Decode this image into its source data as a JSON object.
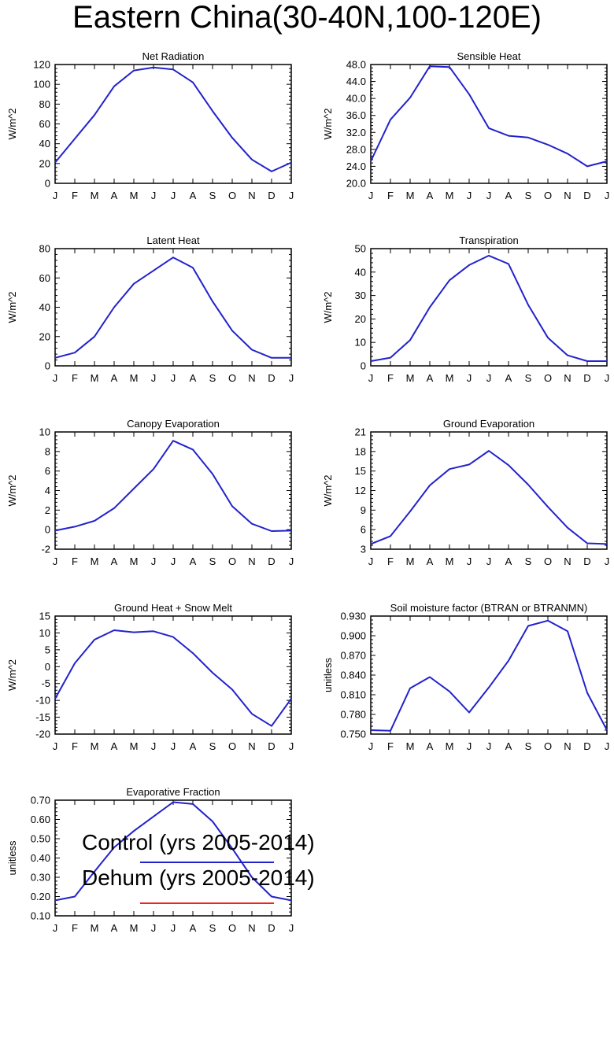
{
  "title": "Eastern China(30-40N,100-120E)",
  "months": [
    "J",
    "F",
    "M",
    "A",
    "M",
    "J",
    "J",
    "A",
    "S",
    "O",
    "N",
    "D",
    "J"
  ],
  "colors": {
    "control": "#2222cc",
    "dehum": "#ee2222",
    "axis": "#000000"
  },
  "legend": [
    {
      "label": "Control (yrs 2005-2014)",
      "color": "#2222cc"
    },
    {
      "label": "Dehum (yrs 2005-2014)",
      "color": "#ee2222"
    }
  ],
  "chart_data": [
    {
      "type": "line",
      "title": "Net Radiation",
      "ylabel": "W/m^2",
      "ylim": [
        0,
        120
      ],
      "yticks": [
        "0",
        "20",
        "40",
        "60",
        "80",
        "100",
        "120"
      ],
      "series": [
        {
          "name": "Control (yrs 2005-2014)",
          "values": [
            21,
            45,
            69,
            98,
            114,
            117,
            115,
            102,
            73,
            46,
            24,
            12,
            21
          ]
        }
      ]
    },
    {
      "type": "line",
      "title": "Sensible Heat",
      "ylabel": "W/m^2",
      "ylim": [
        20,
        48
      ],
      "yticks": [
        "20.0",
        "24.0",
        "28.0",
        "32.0",
        "36.0",
        "40.0",
        "44.0",
        "48.0"
      ],
      "series": [
        {
          "name": "Control (yrs 2005-2014)",
          "values": [
            25.2,
            35,
            40.2,
            47.6,
            47.4,
            41,
            33,
            31.2,
            30.8,
            29.1,
            27,
            24,
            25.2
          ]
        }
      ]
    },
    {
      "type": "line",
      "title": "Latent Heat",
      "ylabel": "W/m^2",
      "ylim": [
        0,
        80
      ],
      "yticks": [
        "0",
        "20",
        "40",
        "60",
        "80"
      ],
      "series": [
        {
          "name": "Control (yrs 2005-2014)",
          "values": [
            5.5,
            9,
            20,
            40,
            56,
            65,
            74,
            67,
            44,
            24,
            11,
            5.5,
            5.5
          ]
        }
      ]
    },
    {
      "type": "line",
      "title": "Transpiration",
      "ylabel": "W/m^2",
      "ylim": [
        0,
        50
      ],
      "yticks": [
        "0",
        "10",
        "20",
        "30",
        "40",
        "50"
      ],
      "series": [
        {
          "name": "Control (yrs 2005-2014)",
          "values": [
            2,
            3.5,
            11,
            25,
            36.5,
            43,
            47,
            43.5,
            26,
            12,
            4.5,
            2,
            2
          ]
        }
      ]
    },
    {
      "type": "line",
      "title": "Canopy Evaporation",
      "ylabel": "W/m^2",
      "ylim": [
        -2,
        10
      ],
      "yticks": [
        "-2",
        "0",
        "2",
        "4",
        "6",
        "8",
        "10"
      ],
      "series": [
        {
          "name": "Control (yrs 2005-2014)",
          "values": [
            -0.1,
            0.3,
            0.9,
            2.2,
            4.2,
            6.2,
            9.1,
            8.2,
            5.7,
            2.4,
            0.6,
            -0.15,
            -0.1
          ]
        }
      ]
    },
    {
      "type": "line",
      "title": "Ground Evaporation",
      "ylabel": "W/m^2",
      "ylim": [
        3,
        21
      ],
      "yticks": [
        "3",
        "6",
        "9",
        "12",
        "15",
        "18",
        "21"
      ],
      "series": [
        {
          "name": "Control (yrs 2005-2014)",
          "values": [
            3.8,
            5,
            8.8,
            12.8,
            15.3,
            16,
            18.1,
            15.9,
            12.9,
            9.5,
            6.3,
            3.9,
            3.8
          ]
        }
      ]
    },
    {
      "type": "line",
      "title": "Ground Heat + Snow Melt",
      "ylabel": "W/m^2",
      "ylim": [
        -20,
        15
      ],
      "yticks": [
        "-20",
        "-15",
        "-10",
        "-5",
        "0",
        "5",
        "10",
        "15"
      ],
      "series": [
        {
          "name": "Control (yrs 2005-2014)",
          "values": [
            -9.5,
            1,
            8,
            10.8,
            10.2,
            10.5,
            8.8,
            4,
            -1.8,
            -6.8,
            -14,
            -17.6,
            -9.5
          ]
        }
      ]
    },
    {
      "type": "line",
      "title": "Soil moisture factor (BTRAN or BTRANMN)",
      "ylabel": "unitless",
      "ylim": [
        0.75,
        0.93
      ],
      "yticks": [
        "0.750",
        "0.780",
        "0.810",
        "0.840",
        "0.870",
        "0.900",
        "0.930"
      ],
      "series": [
        {
          "name": "Control (yrs 2005-2014)",
          "values": [
            0.756,
            0.755,
            0.82,
            0.837,
            0.815,
            0.783,
            0.821,
            0.862,
            0.915,
            0.923,
            0.907,
            0.813,
            0.756
          ]
        }
      ]
    },
    {
      "type": "line",
      "title": "Evaporative Fraction",
      "ylabel": "unitless",
      "ylim": [
        0.1,
        0.7
      ],
      "yticks": [
        "0.10",
        "0.20",
        "0.30",
        "0.40",
        "0.50",
        "0.60",
        "0.70"
      ],
      "series": [
        {
          "name": "Control (yrs 2005-2014)",
          "values": [
            0.18,
            0.2,
            0.33,
            0.455,
            0.54,
            0.615,
            0.69,
            0.68,
            0.59,
            0.45,
            0.3,
            0.2,
            0.18
          ]
        }
      ]
    }
  ]
}
